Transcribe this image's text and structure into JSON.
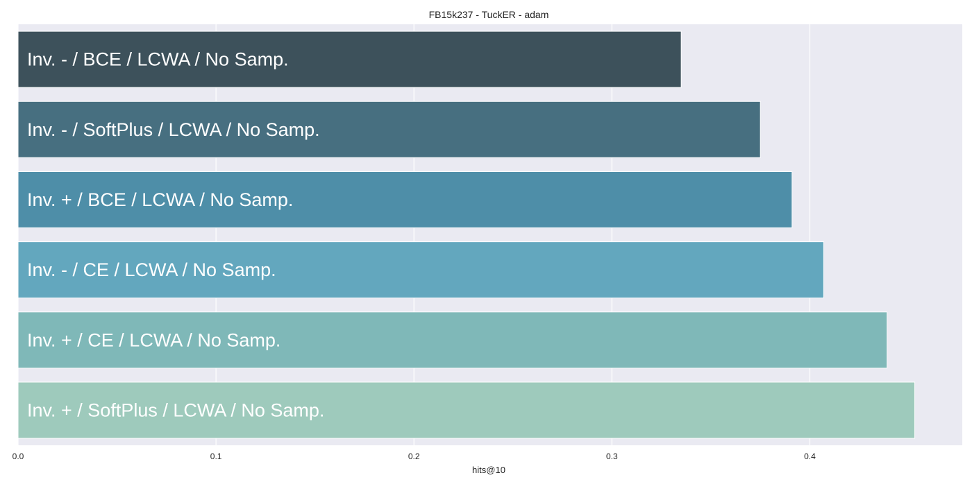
{
  "chart_data": {
    "type": "bar",
    "orientation": "horizontal",
    "title": "FB15k237 - TuckER - adam",
    "xlabel": "hits@10",
    "ylabel": "",
    "xlim": [
      0.0,
      0.477
    ],
    "xticks": [
      0.0,
      0.1,
      0.2,
      0.3,
      0.4
    ],
    "xtick_labels": [
      "0.0",
      "0.1",
      "0.2",
      "0.3",
      "0.4"
    ],
    "grid": true,
    "legend": "none",
    "categories": [
      "Inv. - / BCE / LCWA / No Samp.",
      "Inv. - / SoftPlus / LCWA / No Samp.",
      "Inv. + / BCE / LCWA / No Samp.",
      "Inv. - / CE / LCWA / No Samp.",
      "Inv. + / CE / LCWA / No Samp.",
      "Inv. + / SoftPlus / LCWA / No Samp."
    ],
    "values": [
      0.335,
      0.375,
      0.391,
      0.407,
      0.439,
      0.453
    ],
    "colors": [
      "#3d515b",
      "#476f80",
      "#4e8ea8",
      "#63a7be",
      "#7fb8b8",
      "#9ecabc"
    ],
    "background_color": "#eaeaf2",
    "grid_color": "#ffffff"
  }
}
